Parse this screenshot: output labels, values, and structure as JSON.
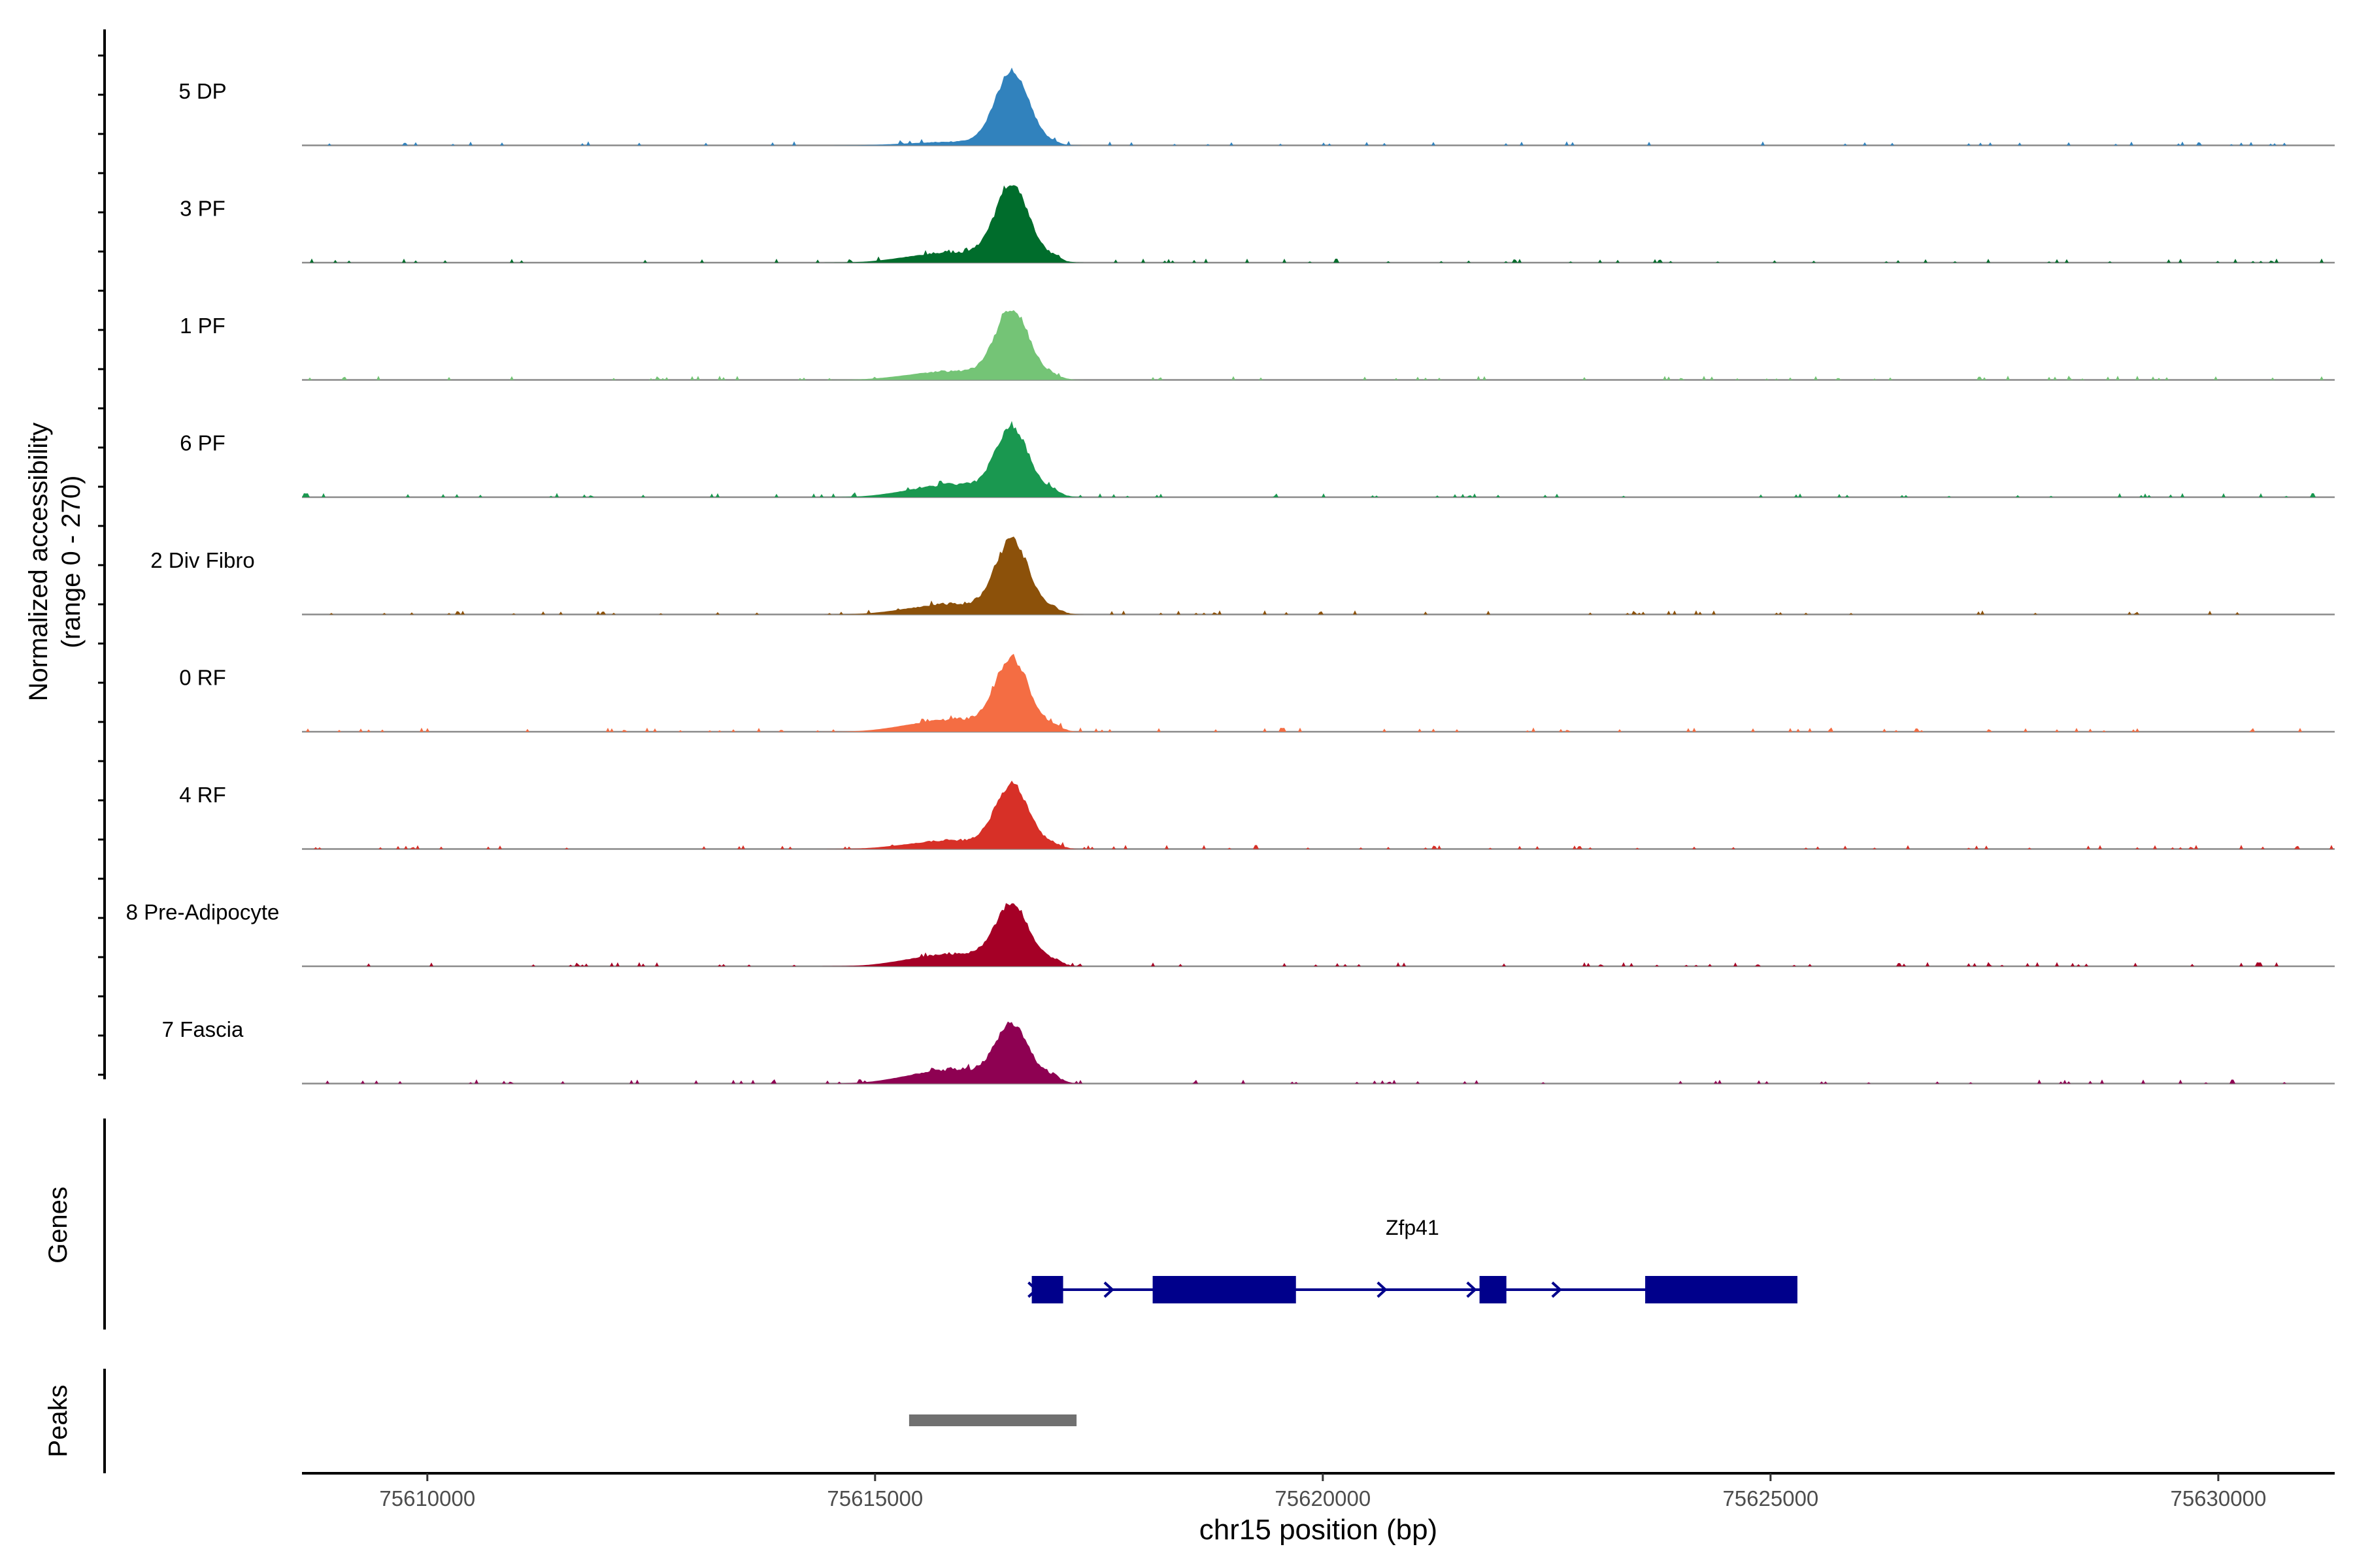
{
  "chart_data": {
    "type": "area",
    "title": "",
    "ylabel_line1": "Normalized accessibility",
    "ylabel_line2": "(range 0 - 270)",
    "y_range": [
      0,
      270
    ],
    "xlabel": "chr15 position (bp)",
    "xlim": [
      75608600,
      75631300
    ],
    "x_ticks": [
      75610000,
      75615000,
      75620000,
      75625000,
      75630000
    ],
    "x_tick_labels": [
      "75610000",
      "75615000",
      "75620000",
      "75625000",
      "75630000"
    ],
    "tracks": [
      {
        "name": "5 DP",
        "color": "#3182bd",
        "peak_height": 0.92,
        "flank": 0.04
      },
      {
        "name": "3 PF",
        "color": "#006d2c",
        "peak_height": 0.97,
        "flank": 0.12
      },
      {
        "name": "1 PF",
        "color": "#74c476",
        "peak_height": 0.88,
        "flank": 0.1
      },
      {
        "name": "6 PF",
        "color": "#1a9850",
        "peak_height": 0.86,
        "flank": 0.14
      },
      {
        "name": "2 Div Fibro",
        "color": "#8c510a",
        "peak_height": 0.92,
        "flank": 0.12
      },
      {
        "name": "0 RF",
        "color": "#f46d43",
        "peak_height": 0.9,
        "flank": 0.14
      },
      {
        "name": "4 RF",
        "color": "#d73027",
        "peak_height": 0.8,
        "flank": 0.1
      },
      {
        "name": "8 Pre-Adipocyte",
        "color": "#a50026",
        "peak_height": 0.78,
        "flank": 0.14
      },
      {
        "name": "7 Fascia",
        "color": "#8e0152",
        "peak_height": 0.73,
        "flank": 0.16
      }
    ],
    "genes_label": "Genes",
    "gene": {
      "name": "Zfp41",
      "color": "#00008b",
      "start": 75616750,
      "end": 75625300,
      "exons": [
        [
          75616750,
          75617100
        ],
        [
          75618100,
          75619700
        ],
        [
          75621750,
          75622050
        ],
        [
          75623600,
          75625300
        ]
      ],
      "arrows": [
        75616800,
        75617650,
        75620700,
        75621700,
        75622650
      ]
    },
    "peaks_label": "Peaks",
    "peaks": [
      {
        "start": 75615380,
        "end": 75617250,
        "color": "#707070"
      }
    ]
  }
}
